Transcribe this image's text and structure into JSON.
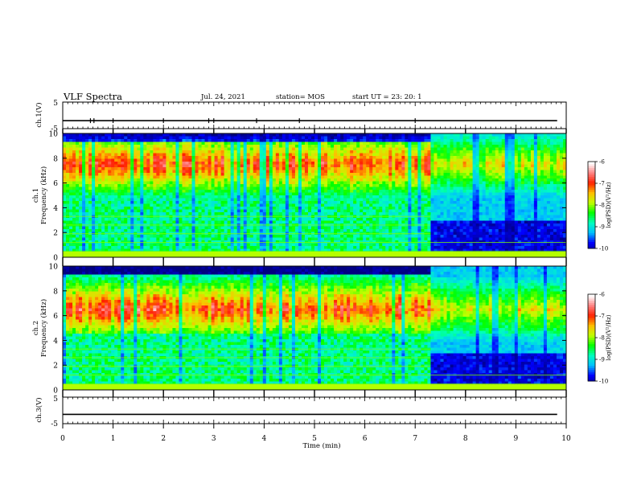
{
  "header": {
    "title": "VLF Spectra",
    "date": "Jul. 24, 2021",
    "station": "station= MOS",
    "start": "start UT =  23: 20: 1"
  },
  "colors": {
    "colormap": [
      "#000080",
      "#0000ff",
      "#00bfff",
      "#00ffbf",
      "#00ff00",
      "#bfff00",
      "#ffbf00",
      "#ff2000",
      "#ff8080",
      "#ffffff"
    ],
    "frame": "#000000",
    "background": "#ffffff"
  },
  "chart_data": [
    {
      "id": "ch1-waveform",
      "type": "line",
      "ylabel": "ch.1(V)",
      "yticks": [
        "5",
        "-5"
      ],
      "ylim": [
        -5,
        5
      ],
      "xlim": [
        0,
        10
      ],
      "baseline": -2,
      "spikes_min": [
        0.55,
        0.62,
        1.0,
        2.0,
        2.9,
        3.0,
        3.85,
        4.7,
        7.0
      ],
      "grid": false
    },
    {
      "id": "ch1-spectrogram",
      "type": "heatmap",
      "ylabel": "ch.1\nFrequency (kHz)",
      "ylabel_line1": "ch.1",
      "ylabel_line2": "Frequency (kHz)",
      "yticks": [
        "0",
        "2",
        "4",
        "6",
        "8",
        "10"
      ],
      "ylim": [
        0,
        10
      ],
      "xlim": [
        0,
        10
      ],
      "peak_band_khz": [
        6,
        9
      ],
      "quiet_after_min": 7.3,
      "colorbar": {
        "label": "log(PSD)(V²/Hz)",
        "ticks": [
          "-6",
          "-7",
          "-8",
          "-9",
          "-10"
        ],
        "range": [
          -10,
          -6
        ]
      }
    },
    {
      "id": "ch2-spectrogram",
      "type": "heatmap",
      "ylabel": "ch.2\nFrequency (kHz)",
      "ylabel_line1": "ch.2",
      "ylabel_line2": "Frequency (kHz)",
      "yticks": [
        "0",
        "2",
        "4",
        "6",
        "8",
        "10"
      ],
      "ylim": [
        0,
        10
      ],
      "xlim": [
        0,
        10
      ],
      "peak_band_khz": [
        5,
        8
      ],
      "quiet_after_min": 7.3,
      "colorbar": {
        "label": "log(PSD)(V²/Hz)",
        "ticks": [
          "-6",
          "-7",
          "-8",
          "-9",
          "-10"
        ],
        "range": [
          -10,
          -6
        ]
      }
    },
    {
      "id": "ch3-waveform",
      "type": "line",
      "ylabel": "ch.3(V)",
      "yticks": [
        "5",
        "-5"
      ],
      "ylim": [
        -5,
        5
      ],
      "xlim": [
        0,
        10
      ],
      "baseline": -1.5,
      "spikes_min": [],
      "grid": false
    }
  ],
  "xaxis": {
    "label": "Time (min)",
    "ticks": [
      "0",
      "1",
      "2",
      "3",
      "4",
      "5",
      "6",
      "7",
      "8",
      "9",
      "10"
    ]
  }
}
